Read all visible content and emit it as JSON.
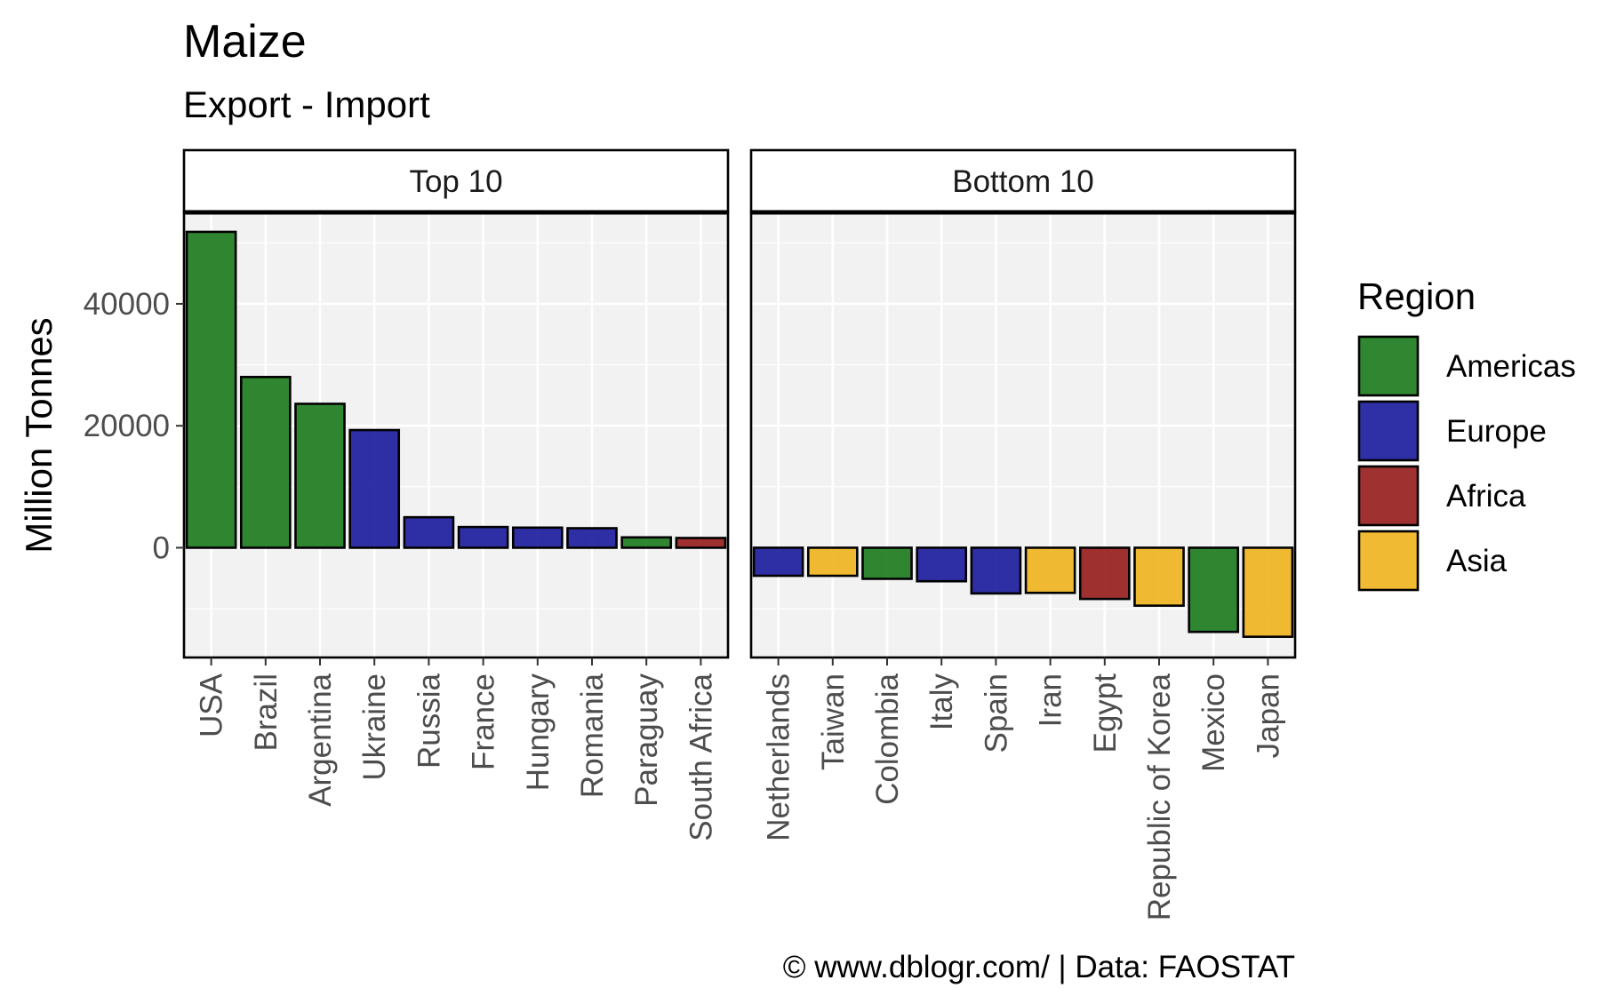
{
  "chart_data": {
    "type": "bar",
    "title": "Maize",
    "subtitle": "Export - Import",
    "ylabel": "Million Tonnes",
    "xlabel": "",
    "ylim": [
      -18000,
      55000
    ],
    "y_ticks": [
      0,
      20000,
      40000
    ],
    "y_tick_labels": [
      "0",
      "20000",
      "40000"
    ],
    "grid": true,
    "legend": {
      "title": "Region",
      "position": "right",
      "entries": [
        {
          "label": "Americas",
          "color": "#1b7a1b"
        },
        {
          "label": "Europe",
          "color": "#1a1a9c"
        },
        {
          "label": "Africa",
          "color": "#951b1b"
        },
        {
          "label": "Asia",
          "color": "#f0b31d"
        }
      ]
    },
    "facets": [
      {
        "label": "Top 10",
        "categories": [
          "USA",
          "Brazil",
          "Argentina",
          "Ukraine",
          "Russia",
          "France",
          "Hungary",
          "Romania",
          "Paraguay",
          "South Africa"
        ],
        "values": [
          51800,
          28000,
          23600,
          19300,
          5000,
          3400,
          3300,
          3200,
          1700,
          1600
        ],
        "regions": [
          "Americas",
          "Americas",
          "Americas",
          "Europe",
          "Europe",
          "Europe",
          "Europe",
          "Europe",
          "Americas",
          "Africa"
        ]
      },
      {
        "label": "Bottom 10",
        "categories": [
          "Netherlands",
          "Taiwan",
          "Colombia",
          "Italy",
          "Spain",
          "Iran",
          "Egypt",
          "Republic of Korea",
          "Mexico",
          "Japan"
        ],
        "values": [
          -4600,
          -4600,
          -5100,
          -5500,
          -7500,
          -7400,
          -8400,
          -9500,
          -13800,
          -14600
        ],
        "regions": [
          "Europe",
          "Asia",
          "Americas",
          "Europe",
          "Europe",
          "Asia",
          "Africa",
          "Asia",
          "Americas",
          "Asia"
        ]
      }
    ]
  },
  "caption": "© www.dblogr.com/  |  Data: FAOSTAT"
}
